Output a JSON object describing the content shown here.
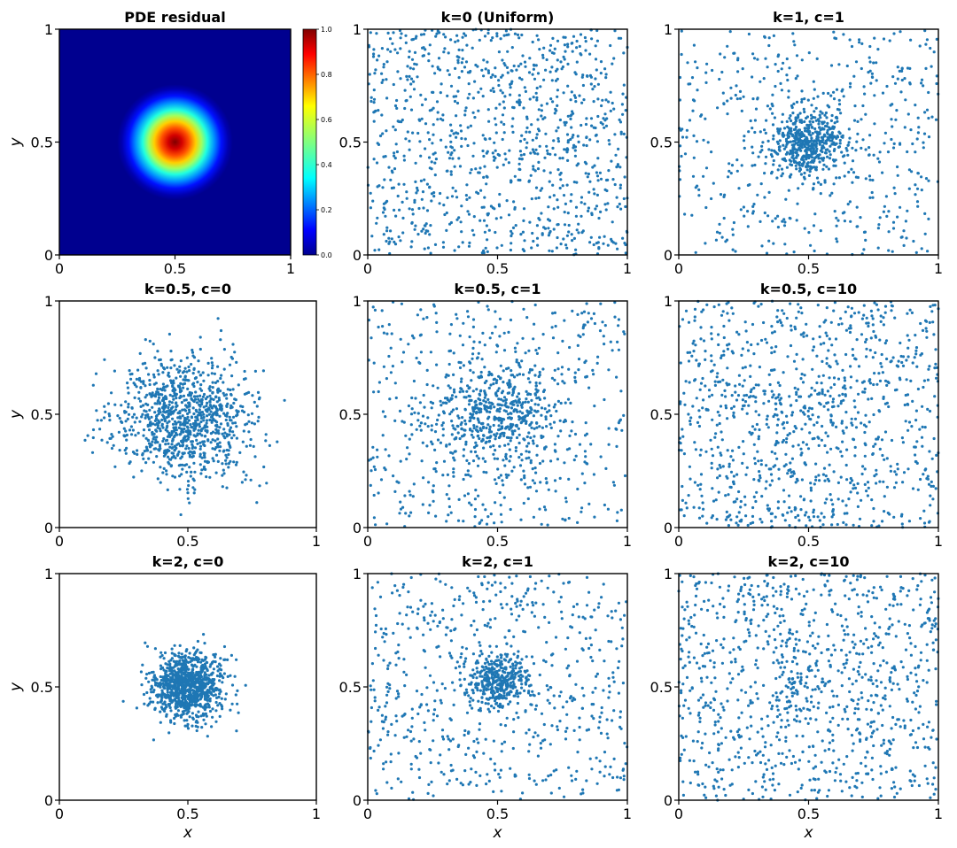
{
  "figure": {
    "colors": {
      "point": "#1f77b4",
      "axes": "#000000",
      "background": "#ffffff",
      "heatmap_background": "#00008f"
    }
  },
  "chart_data": [
    {
      "id": "residual",
      "type": "heatmap",
      "title": "PDE residual",
      "xlabel": "",
      "ylabel": "y",
      "xticks": [
        "0",
        "0.5",
        "1"
      ],
      "yticks": [
        "0",
        "0.5",
        "1"
      ],
      "xlim": [
        0,
        1
      ],
      "ylim": [
        0,
        1
      ],
      "colormap": "jet",
      "center": [
        0.5,
        0.5
      ],
      "peak": 1.0,
      "colorbar": {
        "range": [
          0.0,
          1.0
        ],
        "ticks": [
          "0.0",
          "0.2",
          "0.4",
          "0.6",
          "0.8",
          "1.0"
        ]
      }
    },
    {
      "id": "k0_uniform",
      "type": "scatter",
      "title": "k=0 (Uniform)",
      "xlabel": "",
      "ylabel": "",
      "xticks": [
        "0",
        "0.5",
        "1"
      ],
      "yticks": [
        "0",
        "0.5",
        "1"
      ],
      "xlim": [
        0,
        1
      ],
      "ylim": [
        0,
        1
      ],
      "distribution": {
        "uniform_fraction": 1.0,
        "cluster_fraction": 0.0,
        "center": [
          0.5,
          0.5
        ],
        "spread": 0.0
      },
      "n_points": 1000
    },
    {
      "id": "k1_c1",
      "type": "scatter",
      "title": "k=1, c=1",
      "xlabel": "",
      "ylabel": "",
      "xticks": [
        "0",
        "0.5",
        "1"
      ],
      "yticks": [
        "0",
        "0.5",
        "1"
      ],
      "xlim": [
        0,
        1
      ],
      "ylim": [
        0,
        1
      ],
      "distribution": {
        "uniform_fraction": 0.5,
        "cluster_fraction": 0.5,
        "center": [
          0.5,
          0.5
        ],
        "spread": 0.075
      },
      "n_points": 1000
    },
    {
      "id": "k05_c0",
      "type": "scatter",
      "title": "k=0.5, c=0",
      "xlabel": "",
      "ylabel": "y",
      "xticks": [
        "0",
        "0.5",
        "1"
      ],
      "yticks": [
        "0",
        "0.5",
        "1"
      ],
      "xlim": [
        0,
        1
      ],
      "ylim": [
        0,
        1
      ],
      "distribution": {
        "uniform_fraction": 0.0,
        "cluster_fraction": 1.0,
        "center": [
          0.48,
          0.48
        ],
        "spread": 0.13
      },
      "n_points": 1000
    },
    {
      "id": "k05_c1",
      "type": "scatter",
      "title": "k=0.5, c=1",
      "xlabel": "",
      "ylabel": "",
      "xticks": [
        "0",
        "0.5",
        "1"
      ],
      "yticks": [
        "0",
        "0.5",
        "1"
      ],
      "xlim": [
        0,
        1
      ],
      "ylim": [
        0,
        1
      ],
      "distribution": {
        "uniform_fraction": 0.5,
        "cluster_fraction": 0.5,
        "center": [
          0.5,
          0.5
        ],
        "spread": 0.12
      },
      "n_points": 1000
    },
    {
      "id": "k05_c10",
      "type": "scatter",
      "title": "k=0.5, c=10",
      "xlabel": "",
      "ylabel": "",
      "xticks": [
        "0",
        "0.5",
        "1"
      ],
      "yticks": [
        "0",
        "0.5",
        "1"
      ],
      "xlim": [
        0,
        1
      ],
      "ylim": [
        0,
        1
      ],
      "distribution": {
        "uniform_fraction": 0.92,
        "cluster_fraction": 0.08,
        "center": [
          0.5,
          0.5
        ],
        "spread": 0.12
      },
      "n_points": 1000
    },
    {
      "id": "k2_c0",
      "type": "scatter",
      "title": "k=2, c=0",
      "xlabel": "x",
      "ylabel": "y",
      "xticks": [
        "0",
        "0.5",
        "1"
      ],
      "yticks": [
        "0",
        "0.5",
        "1"
      ],
      "xlim": [
        0,
        1
      ],
      "ylim": [
        0,
        1
      ],
      "distribution": {
        "uniform_fraction": 0.0,
        "cluster_fraction": 1.0,
        "center": [
          0.5,
          0.5
        ],
        "spread": 0.072
      },
      "n_points": 1000
    },
    {
      "id": "k2_c1",
      "type": "scatter",
      "title": "k=2, c=1",
      "xlabel": "x",
      "ylabel": "",
      "xticks": [
        "0",
        "0.5",
        "1"
      ],
      "yticks": [
        "0",
        "0.5",
        "1"
      ],
      "xlim": [
        0,
        1
      ],
      "ylim": [
        0,
        1
      ],
      "distribution": {
        "uniform_fraction": 0.62,
        "cluster_fraction": 0.38,
        "center": [
          0.5,
          0.52
        ],
        "spread": 0.06
      },
      "n_points": 1000
    },
    {
      "id": "k2_c10",
      "type": "scatter",
      "title": "k=2, c=10",
      "xlabel": "x",
      "ylabel": "",
      "xticks": [
        "0",
        "0.5",
        "1"
      ],
      "yticks": [
        "0",
        "0.5",
        "1"
      ],
      "xlim": [
        0,
        1
      ],
      "ylim": [
        0,
        1
      ],
      "distribution": {
        "uniform_fraction": 0.93,
        "cluster_fraction": 0.07,
        "center": [
          0.45,
          0.5
        ],
        "spread": 0.08
      },
      "n_points": 1000
    }
  ]
}
